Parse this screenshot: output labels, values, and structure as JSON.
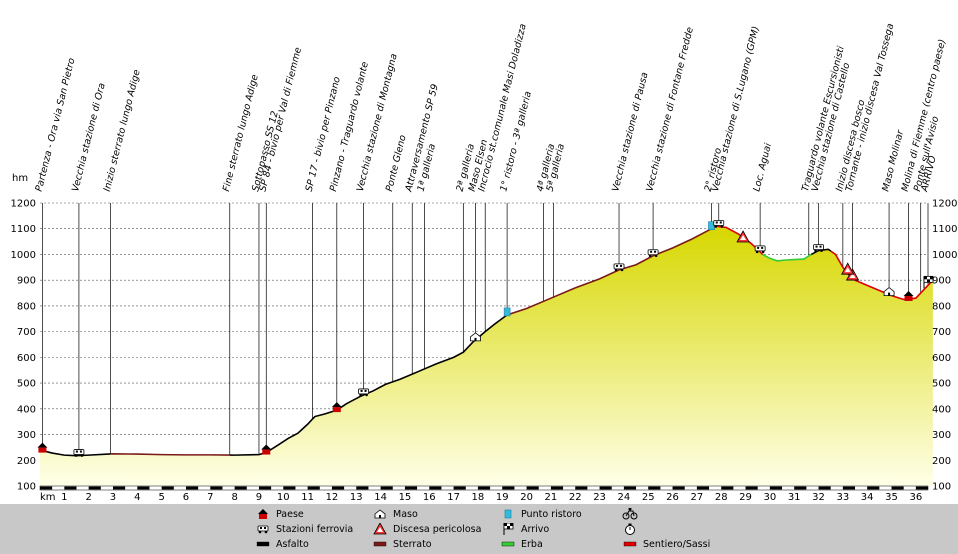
{
  "chart_data": {
    "type": "area",
    "ylabel_left": "hm",
    "xlabel": "km",
    "ylim": [
      100,
      1200
    ],
    "yticks": [
      100,
      200,
      300,
      400,
      500,
      600,
      700,
      800,
      900,
      1000,
      1100,
      1200
    ],
    "xlim": [
      0,
      36.5
    ],
    "xticks": [
      1,
      2,
      3,
      4,
      5,
      6,
      7,
      8,
      9,
      10,
      11,
      12,
      13,
      14,
      15,
      16,
      17,
      18,
      19,
      20,
      21,
      22,
      23,
      24,
      25,
      26,
      27,
      28,
      29,
      30,
      31,
      32,
      33,
      34,
      35,
      36
    ],
    "grid": true,
    "profile": {
      "x": [
        0,
        0.5,
        1,
        1.5,
        2,
        3,
        4,
        5,
        6,
        7,
        8,
        9,
        9.3,
        9.8,
        10.2,
        10.6,
        11,
        11.3,
        11.7,
        12.2,
        12.6,
        13.2,
        13.7,
        14.2,
        14.8,
        15.3,
        15.8,
        16.3,
        17,
        17.4,
        17.8,
        18.3,
        18.7,
        19.2,
        20,
        21,
        22,
        23,
        23.8,
        24.5,
        25.2,
        26,
        26.8,
        27.4,
        27.8,
        28.2,
        28.7,
        29.2,
        29.5,
        29.7,
        30,
        30.3,
        30.6,
        31,
        31.4,
        31.7,
        32,
        32.4,
        32.7,
        33,
        33.2,
        33.5,
        34,
        34.5,
        35,
        35.5,
        36,
        36.3,
        36.7
      ],
      "y": [
        240,
        228,
        220,
        218,
        220,
        225,
        224,
        222,
        221,
        221,
        220,
        222,
        230,
        260,
        285,
        305,
        340,
        370,
        380,
        395,
        420,
        450,
        470,
        495,
        515,
        535,
        555,
        575,
        600,
        620,
        660,
        700,
        730,
        765,
        790,
        830,
        870,
        905,
        940,
        960,
        995,
        1025,
        1060,
        1090,
        1110,
        1105,
        1080,
        1045,
        1020,
        1000,
        985,
        975,
        978,
        980,
        982,
        1000,
        1015,
        1020,
        1000,
        950,
        925,
        900,
        880,
        860,
        840,
        825,
        830,
        860,
        900
      ]
    },
    "waypoints": [
      {
        "km": 0.1,
        "label": "Partenza - Ora via San Pietro",
        "icon": "paese"
      },
      {
        "km": 1.6,
        "label": "Vecchia stazione di Ora",
        "icon": "stazione"
      },
      {
        "km": 2.9,
        "label": "Inizio sterrato lungo Adige",
        "icon": ""
      },
      {
        "km": 7.8,
        "label": "Fine sterrato lungo Adige",
        "icon": ""
      },
      {
        "km": 9.0,
        "label": "Sottopasso SS 12",
        "icon": ""
      },
      {
        "km": 9.3,
        "label": "SP 84 - bivio per Val di Fiemme",
        "icon": "paese"
      },
      {
        "km": 11.2,
        "label": "SP 17 - bivio per Pinzano",
        "icon": ""
      },
      {
        "km": 12.2,
        "label": "Pinzano - Traguardo volante",
        "icon": "paese"
      },
      {
        "km": 13.3,
        "label": "Vecchia stazione di Montagna",
        "icon": "stazione"
      },
      {
        "km": 14.5,
        "label": "Ponte Gleno",
        "icon": ""
      },
      {
        "km": 15.3,
        "label": "Attraversamento SP 59",
        "icon": ""
      },
      {
        "km": 15.8,
        "label": "1ª galleria",
        "icon": ""
      },
      {
        "km": 17.4,
        "label": "2ª galleria",
        "icon": ""
      },
      {
        "km": 17.9,
        "label": "Maso Elsen",
        "icon": "maso"
      },
      {
        "km": 18.3,
        "label": "Incrocio st.comunale Masi Doladizza",
        "icon": ""
      },
      {
        "km": 19.2,
        "label": "1° ristoro - 3ª galleria",
        "icon": "ristoro"
      },
      {
        "km": 20.7,
        "label": "4ª galleria",
        "icon": ""
      },
      {
        "km": 21.1,
        "label": "5ª galleria",
        "icon": ""
      },
      {
        "km": 23.8,
        "label": "Vecchia stazione di Pausa",
        "icon": "stazione"
      },
      {
        "km": 25.2,
        "label": "Vecchia stazione di Fontane Fredde",
        "icon": "stazione"
      },
      {
        "km": 27.6,
        "label": "2° ristoro",
        "icon": "ristoro"
      },
      {
        "km": 27.9,
        "label": "Vecchia stazione di S.Lugano (GPM)",
        "icon": "stazione"
      },
      {
        "km": 29.6,
        "label": "Loc. Aguai",
        "icon": "stazione"
      },
      {
        "km": 31.6,
        "label": "Traguardo volante Escursionisti",
        "icon": ""
      },
      {
        "km": 32.0,
        "label": "Vecchia stazione di Castello",
        "icon": "stazione"
      },
      {
        "km": 33.0,
        "label": "Inizio discesa bosco",
        "icon": ""
      },
      {
        "km": 33.4,
        "label": "Tornante - inizio discesa Val Tossega",
        "icon": "discesa"
      },
      {
        "km": 34.9,
        "label": "Maso Molinar",
        "icon": "maso"
      },
      {
        "km": 35.7,
        "label": "Molina di Fiemme (centro paese)",
        "icon": "paese"
      },
      {
        "km": 36.2,
        "label": "Ponte sull'Avisio",
        "icon": ""
      },
      {
        "km": 36.5,
        "label": "ARRIVO",
        "icon": "arrivo"
      }
    ],
    "danger_marks": [
      {
        "km": 28.9,
        "elev": 1060
      },
      {
        "km": 33.2,
        "elev": 935
      }
    ],
    "surface_segments": [
      {
        "from": 0,
        "to": 2.9,
        "surface": "asfalto"
      },
      {
        "from": 2.9,
        "to": 7.8,
        "surface": "sterrato"
      },
      {
        "from": 7.8,
        "to": 9.3,
        "surface": "asfalto"
      },
      {
        "from": 9.3,
        "to": 11.2,
        "surface": "asfalto"
      },
      {
        "from": 11.2,
        "to": 19.2,
        "surface": "asfalto"
      },
      {
        "from": 19.2,
        "to": 27.6,
        "surface": "sterrato"
      },
      {
        "from": 27.6,
        "to": 29.7,
        "surface": "sentiero"
      },
      {
        "from": 29.7,
        "to": 31.7,
        "surface": "erba"
      },
      {
        "from": 31.7,
        "to": 32.5,
        "surface": "asfalto"
      },
      {
        "from": 32.5,
        "to": 36.7,
        "surface": "sentiero"
      }
    ],
    "legend": [
      {
        "label": "Paese",
        "symbol": "paese"
      },
      {
        "label": "Stazioni ferrovia",
        "symbol": "stazione"
      },
      {
        "label": "Asfalto",
        "symbol": "asfalto"
      },
      {
        "label": "Maso",
        "symbol": "maso"
      },
      {
        "label": "Discesa pericolosa",
        "symbol": "discesa"
      },
      {
        "label": "Sterrato",
        "symbol": "sterrato"
      },
      {
        "label": "Punto ristoro",
        "symbol": "ristoro"
      },
      {
        "label": "Arrivo",
        "symbol": "arrivo"
      },
      {
        "label": "Erba",
        "symbol": "erba"
      },
      {
        "label": "",
        "symbol": "bike-icon"
      },
      {
        "label": "",
        "symbol": "stopwatch-icon"
      },
      {
        "label": "Sentiero/Sassi",
        "symbol": "sentiero"
      }
    ],
    "colors": {
      "fill_top": "#d7d700",
      "fill_bottom": "#ffffe8",
      "asfalto": "#000000",
      "sterrato": "#7a1a1a",
      "erba": "#33cc33",
      "sentiero": "#e00000",
      "paese": "#cc0000",
      "ristoro": "#33bbdd",
      "legend_bg": "#c8c8c8"
    }
  }
}
